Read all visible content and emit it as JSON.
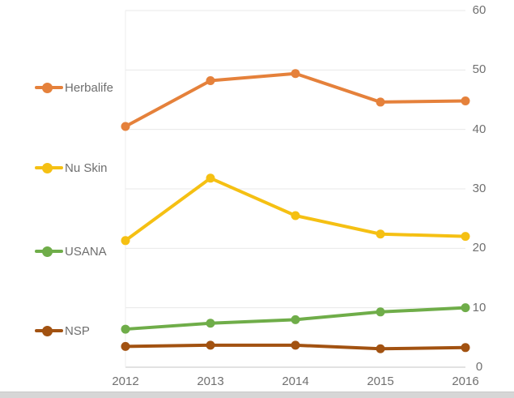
{
  "window": {
    "background_color": "#FFFFFF",
    "bottom_bar_color": "#D6D6D6"
  },
  "chart_data": {
    "type": "line",
    "title": "",
    "xlabel": "",
    "ylabel": "",
    "x_labels": [
      "2012",
      "2013",
      "2014",
      "2015",
      "2016"
    ],
    "y_ticks": [
      0,
      10,
      20,
      30,
      40,
      50,
      60
    ],
    "ylim": [
      0,
      60
    ],
    "grid": true,
    "legend_position": "left",
    "gridline_color": "#E8E8E8",
    "axis_line_color": "#C6C6C6",
    "plot_left_edge_color": "#EDEDED",
    "label_color": "#707070",
    "series": [
      {
        "name": "Herbalife",
        "color": "#E5813B",
        "values": [
          40.5,
          48.2,
          49.4,
          44.6,
          44.8
        ]
      },
      {
        "name": "Nu Skin",
        "color": "#F5C013",
        "values": [
          21.3,
          31.8,
          25.5,
          22.4,
          22.0
        ]
      },
      {
        "name": "USANA",
        "color": "#6FAD49",
        "values": [
          6.4,
          7.4,
          8.0,
          9.3,
          10.0
        ]
      },
      {
        "name": "NSP",
        "color": "#A25211",
        "values": [
          3.5,
          3.7,
          3.7,
          3.1,
          3.3
        ]
      }
    ]
  }
}
